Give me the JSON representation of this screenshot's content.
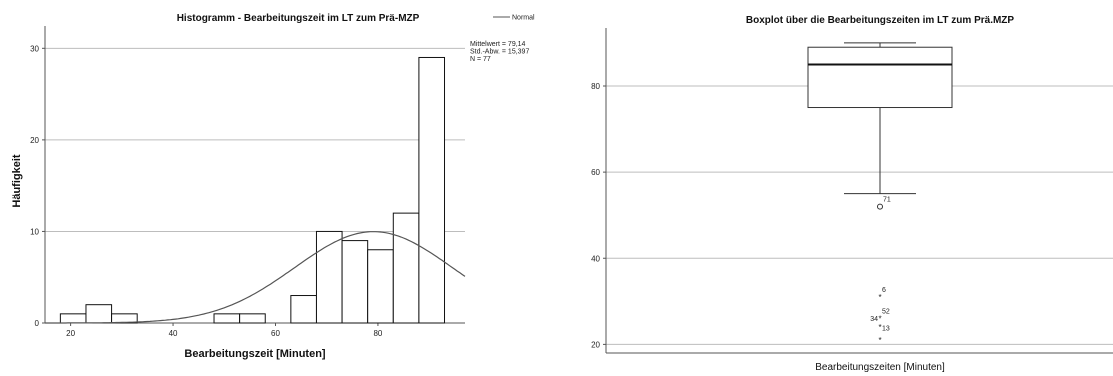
{
  "chart_data": [
    {
      "type": "bar",
      "title": "Histogramm - Bearbeitungszeit im LT zum Prä-MZP",
      "xlabel": "Bearbeitungszeit [Minuten]",
      "ylabel": "Häufigkeit",
      "xlim": [
        15,
        97
      ],
      "ylim": [
        0,
        32
      ],
      "xticks": [
        20,
        40,
        60,
        80
      ],
      "yticks": [
        0,
        10,
        20,
        30
      ],
      "grid": true,
      "bins": [
        {
          "from": 18,
          "to": 23,
          "count": 1
        },
        {
          "from": 23,
          "to": 28,
          "count": 2
        },
        {
          "from": 28,
          "to": 33,
          "count": 1
        },
        {
          "from": 48,
          "to": 53,
          "count": 1
        },
        {
          "from": 53,
          "to": 58,
          "count": 1
        },
        {
          "from": 63,
          "to": 68,
          "count": 3
        },
        {
          "from": 68,
          "to": 73,
          "count": 10
        },
        {
          "from": 73,
          "to": 78,
          "count": 9
        },
        {
          "from": 78,
          "to": 83,
          "count": 8
        },
        {
          "from": 83,
          "to": 88,
          "count": 12
        },
        {
          "from": 88,
          "to": 93,
          "count": 29
        }
      ],
      "normal_curve": {
        "mean": 79.14,
        "sd": 15.397,
        "n": 77,
        "bin_width": 5
      },
      "legend": {
        "label": "Normal",
        "placement": "top-right"
      },
      "stats_lines": [
        "Mittelwert = 79,14",
        "Std.-Abw. = 15,397",
        "N = 77"
      ]
    },
    {
      "type": "box",
      "title": "Boxplot über die Bearbeitungszeiten im LT zum Prä.MZP",
      "xlabel": "Bearbeitungszeiten [Minuten]",
      "ylim": [
        18,
        93
      ],
      "yticks": [
        20,
        40,
        60,
        80
      ],
      "grid": true,
      "box": {
        "whisker_low": 55,
        "q1": 75,
        "median": 85,
        "q3": 89,
        "whisker_high": 90
      },
      "outliers": [
        {
          "label": "71",
          "value": 52
        }
      ],
      "extremes": [
        {
          "label": "6",
          "value": 31
        },
        {
          "label": "52",
          "value": 26
        },
        {
          "label": "34",
          "value": 26
        },
        {
          "label": "13",
          "value": 24
        }
      ],
      "extra_extreme_values": [
        21
      ]
    }
  ]
}
